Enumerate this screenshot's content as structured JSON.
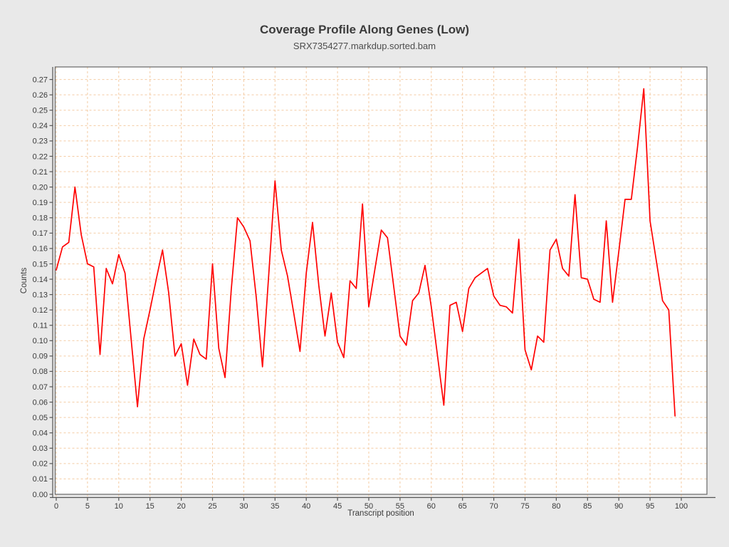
{
  "chart_data": {
    "type": "line",
    "title": "Coverage Profile Along Genes (Low)",
    "subtitle": "SRX7354277.markdup.sorted.bam",
    "xlabel": "Transcript position",
    "ylabel": "Counts",
    "xlim": [
      0,
      100
    ],
    "ylim": [
      0.0,
      0.279
    ],
    "grid": "dashed",
    "legend_position": "none",
    "x_tick_labels": [
      0,
      5,
      10,
      15,
      20,
      25,
      30,
      35,
      40,
      45,
      50,
      55,
      60,
      65,
      70,
      75,
      80,
      85,
      90,
      95,
      100
    ],
    "y_tick_labels": [
      "0.00",
      "0.01",
      "0.02",
      "0.03",
      "0.04",
      "0.05",
      "0.06",
      "0.07",
      "0.08",
      "0.09",
      "0.10",
      "0.11",
      "0.12",
      "0.13",
      "0.14",
      "0.15",
      "0.16",
      "0.17",
      "0.18",
      "0.19",
      "0.20",
      "0.21",
      "0.22",
      "0.23",
      "0.24",
      "0.25",
      "0.26",
      "0.27"
    ],
    "x": [
      0,
      1,
      2,
      3,
      4,
      5,
      6,
      7,
      8,
      9,
      10,
      11,
      12,
      13,
      14,
      15,
      16,
      17,
      18,
      19,
      20,
      21,
      22,
      23,
      24,
      25,
      26,
      27,
      28,
      29,
      30,
      31,
      32,
      33,
      34,
      35,
      36,
      37,
      38,
      39,
      40,
      41,
      42,
      43,
      44,
      45,
      46,
      47,
      48,
      49,
      50,
      51,
      52,
      53,
      54,
      55,
      56,
      57,
      58,
      59,
      60,
      61,
      62,
      63,
      64,
      65,
      66,
      67,
      68,
      69,
      70,
      71,
      72,
      73,
      74,
      75,
      76,
      77,
      78,
      79,
      80,
      81,
      82,
      83,
      84,
      85,
      86,
      87,
      88,
      89,
      90,
      91,
      92,
      93,
      94,
      95,
      96,
      97,
      98,
      99
    ],
    "values": [
      0.146,
      0.161,
      0.164,
      0.2,
      0.169,
      0.15,
      0.148,
      0.091,
      0.147,
      0.137,
      0.156,
      0.144,
      0.1,
      0.057,
      0.101,
      0.12,
      0.14,
      0.159,
      0.131,
      0.09,
      0.098,
      0.071,
      0.101,
      0.091,
      0.088,
      0.15,
      0.095,
      0.076,
      0.133,
      0.18,
      0.174,
      0.165,
      0.128,
      0.083,
      0.143,
      0.204,
      0.159,
      0.142,
      0.118,
      0.093,
      0.144,
      0.177,
      0.136,
      0.103,
      0.131,
      0.099,
      0.089,
      0.139,
      0.134,
      0.189,
      0.122,
      0.147,
      0.172,
      0.167,
      0.135,
      0.103,
      0.097,
      0.126,
      0.131,
      0.149,
      0.122,
      0.09,
      0.058,
      0.123,
      0.125,
      0.106,
      0.134,
      0.141,
      0.144,
      0.147,
      0.129,
      0.123,
      0.122,
      0.118,
      0.166,
      0.094,
      0.081,
      0.103,
      0.099,
      0.159,
      0.166,
      0.147,
      0.142,
      0.195,
      0.141,
      0.14,
      0.127,
      0.125,
      0.178,
      0.125,
      0.158,
      0.192,
      0.192,
      0.226,
      0.264,
      0.178,
      0.152,
      0.126,
      0.12,
      0.051
    ],
    "colors": {
      "line": "#ff0000",
      "grid": "#f4cba3",
      "plot_background": "#ffffff",
      "page_background": "#e9e9e9",
      "plot_border": "#666666",
      "axis": "#555555",
      "text": "#3a3a3a"
    }
  }
}
